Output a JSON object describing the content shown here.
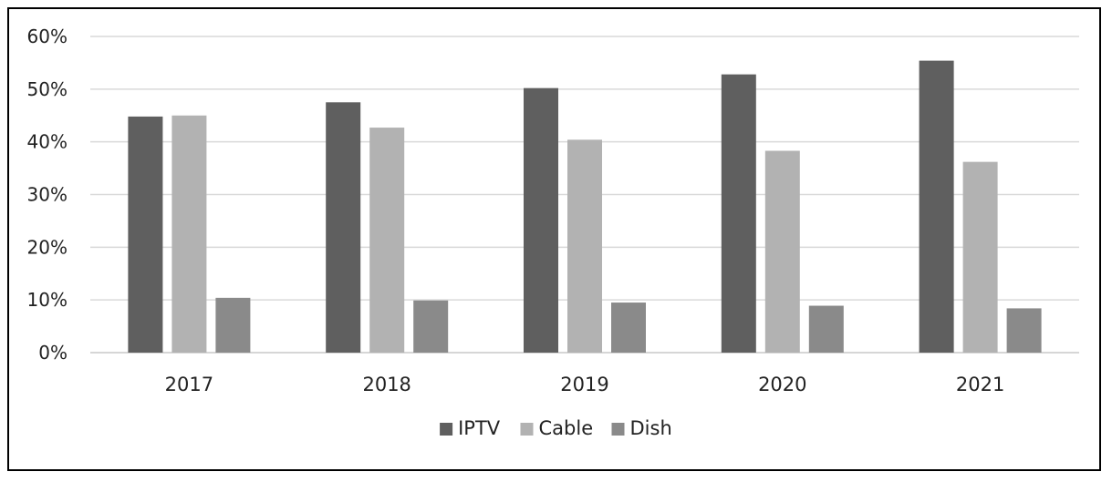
{
  "chart_data": {
    "type": "bar",
    "categories": [
      "2017",
      "2018",
      "2019",
      "2020",
      "2021"
    ],
    "series": [
      {
        "name": "IPTV",
        "values": [
          44.8,
          47.5,
          50.2,
          52.8,
          55.4
        ],
        "color": "#5f5f5f"
      },
      {
        "name": "Cable",
        "values": [
          45.0,
          42.7,
          40.4,
          38.3,
          36.2
        ],
        "color": "#b2b2b2"
      },
      {
        "name": "Dish",
        "values": [
          10.4,
          9.9,
          9.5,
          8.9,
          8.4
        ],
        "color": "#8a8a8a"
      }
    ],
    "title": "",
    "xlabel": "",
    "ylabel": "",
    "ylim": [
      0,
      60
    ],
    "yticks": [
      "0%",
      "10%",
      "20%",
      "30%",
      "40%",
      "50%",
      "60%"
    ],
    "grid": true,
    "legend_position": "bottom",
    "gridline_color": "#d9d9d9"
  }
}
